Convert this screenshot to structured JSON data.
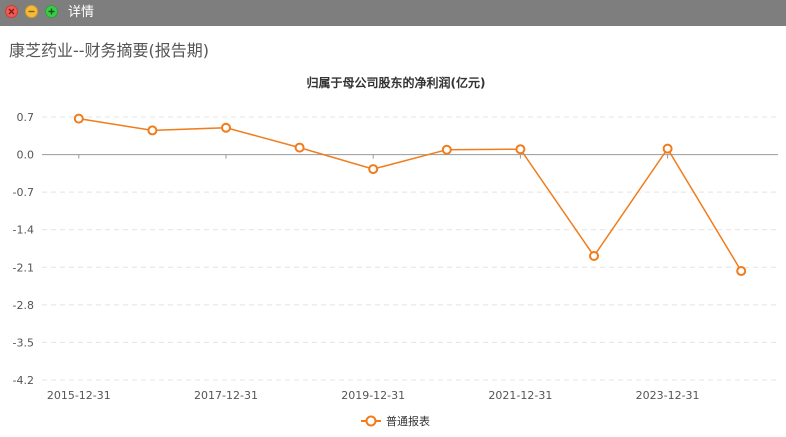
{
  "window": {
    "title": "详情",
    "buttons": [
      "close",
      "minimize",
      "maximize"
    ]
  },
  "page": {
    "heading": "康芝药业--财务摘要(报告期)"
  },
  "chart_data": {
    "type": "line",
    "title": "归属于母公司股东的净利润(亿元)",
    "xlabel": "",
    "ylabel": "",
    "x": [
      "2015-12-31",
      "2016-12-31",
      "2017-12-31",
      "2018-12-31",
      "2019-12-31",
      "2020-12-31",
      "2021-12-31",
      "2022-12-31",
      "2023-12-31",
      "2024-12-31"
    ],
    "x_tick_labels": [
      "2015-12-31",
      "2017-12-31",
      "2019-12-31",
      "2021-12-31",
      "2023-12-31"
    ],
    "y_ticks": [
      "0.7",
      "0.0",
      "-0.7",
      "-1.4",
      "-2.1",
      "-2.8",
      "-3.5",
      "-4.2"
    ],
    "ylim": [
      -4.2,
      0.7
    ],
    "grid": true,
    "legend_position": "bottom",
    "series": [
      {
        "name": "普通报表",
        "color": "#f07c1c",
        "values": [
          0.67,
          0.45,
          0.5,
          0.13,
          -0.27,
          0.09,
          0.1,
          -1.89,
          0.11,
          -2.17
        ]
      }
    ]
  }
}
